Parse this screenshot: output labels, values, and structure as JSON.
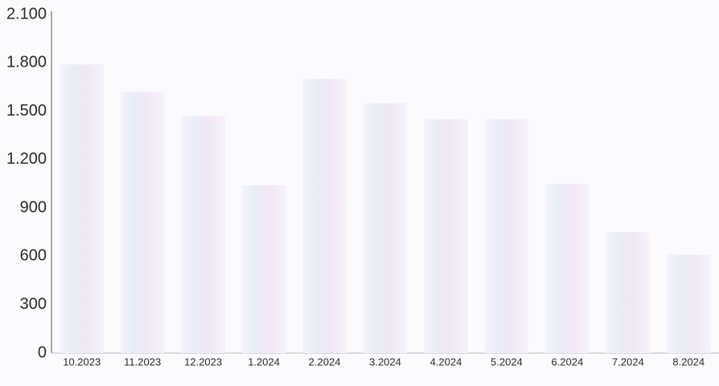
{
  "chart_data": {
    "type": "bar",
    "categories": [
      "10.2023",
      "11.2023",
      "12.2023",
      "1.2024",
      "2.2024",
      "3.2024",
      "4.2024",
      "5.2024",
      "6.2024",
      "7.2024",
      "8.2024"
    ],
    "values": [
      1790,
      1620,
      1470,
      1040,
      1700,
      1550,
      1450,
      1450,
      1050,
      750,
      610
    ],
    "color": "#ece6f5",
    "ylim": [
      0,
      2100
    ],
    "yticks": [
      0,
      300,
      600,
      900,
      {
        "value": 1200,
        "label": "1.200"
      },
      {
        "value": 1500,
        "label": "1.500"
      },
      {
        "value": 1800,
        "label": "1.800"
      },
      {
        "value": 2100,
        "label": "2.100"
      }
    ],
    "grid": false
  }
}
